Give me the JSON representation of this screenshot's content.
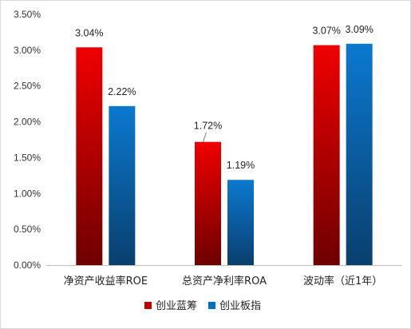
{
  "chart_data": {
    "type": "bar",
    "title": "",
    "xlabel": "",
    "ylabel": "",
    "categories": [
      "净资产收益率ROE",
      "总资产净利率ROA",
      "波动率（近1年）"
    ],
    "series": [
      {
        "name": "创业蓝筹",
        "values": [
          3.04,
          1.72,
          3.07
        ],
        "labels": [
          "3.04%",
          "1.72%",
          "3.07%"
        ],
        "color": "#c00000"
      },
      {
        "name": "创业板指",
        "values": [
          2.22,
          1.19,
          3.09
        ],
        "labels": [
          "2.22%",
          "1.19%",
          "3.09%"
        ],
        "color": "#0070c0"
      }
    ],
    "ylim": [
      0,
      3.5
    ],
    "yticks": [
      0,
      0.5,
      1.0,
      1.5,
      2.0,
      2.5,
      3.0,
      3.5
    ],
    "ytick_labels": [
      "0.00%",
      "0.50%",
      "1.00%",
      "1.50%",
      "2.00%",
      "2.50%",
      "3.00%",
      "3.50%"
    ],
    "grid": false,
    "legend": "bottom-center"
  }
}
